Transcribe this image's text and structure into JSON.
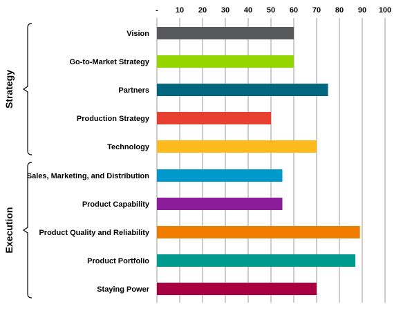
{
  "chart_data": {
    "type": "bar",
    "orientation": "horizontal",
    "title": "",
    "xlabel": "",
    "ylabel": "",
    "xlim": [
      0,
      100
    ],
    "x_ticks": [
      "-",
      "10",
      "20",
      "30",
      "40",
      "50",
      "60",
      "70",
      "80",
      "90",
      "100"
    ],
    "x_tick_values": [
      0,
      10,
      20,
      30,
      40,
      50,
      60,
      70,
      80,
      90,
      100
    ],
    "x_axis_position": "top",
    "grid": true,
    "legend": "none",
    "categories": [
      "Vision",
      "Go-to-Market Strategy",
      "Partners",
      "Production Strategy",
      "Technology",
      "Sales, Marketing, and Distribution",
      "Product Capability",
      "Product Quality and Reliability",
      "Product Portfolio",
      "Staying Power"
    ],
    "values": [
      60,
      60,
      75,
      50,
      70,
      55,
      55,
      89,
      87,
      70
    ],
    "colors": [
      "#58595b",
      "#95d600",
      "#00677f",
      "#e84030",
      "#ffba1e",
      "#0099cc",
      "#8b1c9a",
      "#f07d00",
      "#009a8f",
      "#a90042"
    ],
    "groups": [
      {
        "label": "Strategy",
        "categories": [
          "Vision",
          "Go-to-Market Strategy",
          "Partners",
          "Production Strategy",
          "Technology"
        ]
      },
      {
        "label": "Execution",
        "categories": [
          "Sales, Marketing, and Distribution",
          "Product Capability",
          "Product Quality and Reliability",
          "Product Portfolio",
          "Staying Power"
        ]
      }
    ]
  }
}
